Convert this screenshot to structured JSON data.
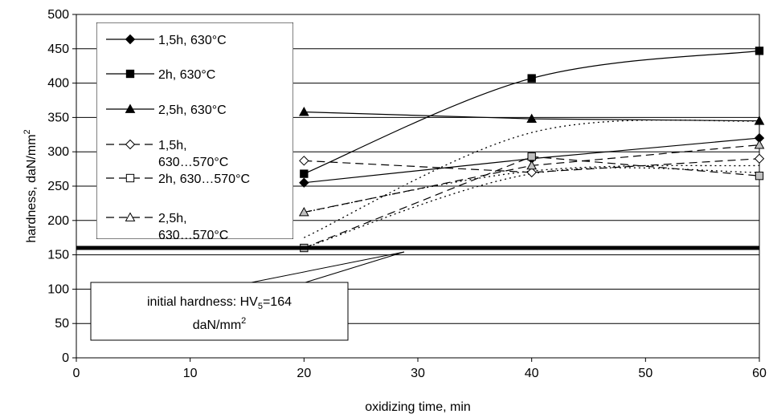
{
  "chart_data": {
    "type": "line",
    "xlabel": "oxidizing time, min",
    "ylabel": "hardness, daN/mm",
    "ylabel_sup": "2",
    "xlim": [
      0,
      60
    ],
    "ylim": [
      0,
      500
    ],
    "xticks": [
      0,
      10,
      20,
      30,
      40,
      50,
      60
    ],
    "yticks": [
      0,
      50,
      100,
      150,
      200,
      250,
      300,
      350,
      400,
      450,
      500
    ],
    "grid": "horizontal",
    "legend_position": "top-left",
    "series": [
      {
        "name": "1,5h, 630°C",
        "marker": "diamond",
        "filled": true,
        "x": [
          20,
          40,
          60
        ],
        "values": [
          255,
          290,
          320
        ]
      },
      {
        "name": "2h, 630°C",
        "marker": "square",
        "filled": true,
        "x": [
          20,
          40,
          60
        ],
        "values": [
          268,
          407,
          447
        ]
      },
      {
        "name": "2,5h, 630°C",
        "marker": "triangle",
        "filled": true,
        "x": [
          20,
          40,
          60
        ],
        "values": [
          358,
          348,
          345
        ]
      },
      {
        "name": "1,5h, 630…570°C",
        "marker": "diamond",
        "filled": false,
        "x": [
          20,
          40,
          60
        ],
        "values": [
          287,
          270,
          290
        ]
      },
      {
        "name": "2h, 630…570°C",
        "marker": "square",
        "filled": false,
        "x": [
          20,
          40,
          60
        ],
        "values": [
          160,
          293,
          265
        ]
      },
      {
        "name": "2,5h, 630…570°C",
        "marker": "triangle",
        "filled": false,
        "x": [
          20,
          40,
          60
        ],
        "values": [
          212,
          280,
          310
        ]
      }
    ],
    "dotted_curves": [
      {
        "x": [
          20,
          40,
          60
        ],
        "values": [
          212,
          272,
          280
        ]
      },
      {
        "x": [
          20,
          40,
          60
        ],
        "values": [
          175,
          328,
          345
        ]
      },
      {
        "x": [
          20,
          40,
          60
        ],
        "values": [
          160,
          268,
          270
        ]
      }
    ],
    "reference_line": {
      "value": 160
    },
    "annotation": {
      "text_before": "initial hardness: HV",
      "subscript": "5",
      "text_after": "=164",
      "line2": "daN/mm",
      "line2_sup": "2"
    },
    "colors": {
      "line": "#000000",
      "open_marker_fill": "#ffffff",
      "gray_marker_fill": "#c0c0c0"
    }
  }
}
